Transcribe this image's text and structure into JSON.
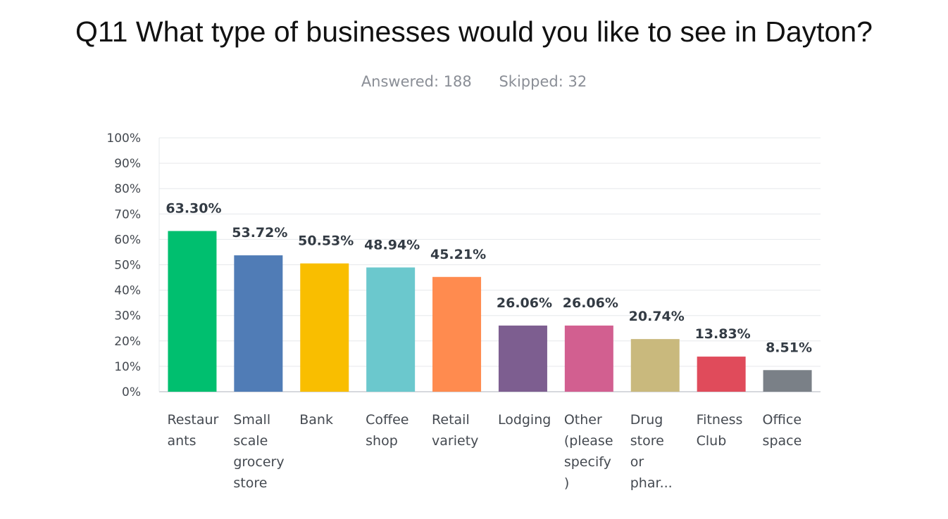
{
  "title": "Q11 What type of businesses would you like to see in Dayton?",
  "stats": {
    "answered": "Answered: 188",
    "skipped": "Skipped: 32"
  },
  "chart_data": {
    "type": "bar",
    "title": "Q11 What type of businesses would you like to see in Dayton?",
    "xlabel": "",
    "ylabel": "",
    "ylim": [
      0,
      100
    ],
    "y_ticks": [
      "0%",
      "10%",
      "20%",
      "30%",
      "40%",
      "50%",
      "60%",
      "70%",
      "80%",
      "90%",
      "100%"
    ],
    "grid": true,
    "categories": [
      [
        "Restaur",
        "ants"
      ],
      [
        "Small",
        "scale",
        "grocery",
        "store"
      ],
      [
        "Bank"
      ],
      [
        "Coffee",
        "shop"
      ],
      [
        "Retail",
        "variety"
      ],
      [
        "Lodging"
      ],
      [
        "Other",
        "(please",
        "specify",
        ")"
      ],
      [
        "Drug",
        "store",
        "or",
        "phar..."
      ],
      [
        "Fitness",
        "Club"
      ],
      [
        "Office",
        "space"
      ]
    ],
    "values": [
      63.3,
      53.72,
      50.53,
      48.94,
      45.21,
      26.06,
      26.06,
      20.74,
      13.83,
      8.51
    ],
    "data_labels": [
      "63.30%",
      "53.72%",
      "50.53%",
      "48.94%",
      "45.21%",
      "26.06%",
      "26.06%",
      "20.74%",
      "13.83%",
      "8.51%"
    ],
    "colors": [
      "#00bf6f",
      "#507cb6",
      "#f9be00",
      "#6bc8cd",
      "#ff8b4f",
      "#7d5e90",
      "#d25f90",
      "#c9b97d",
      "#e04b5b",
      "#7a8087"
    ]
  }
}
